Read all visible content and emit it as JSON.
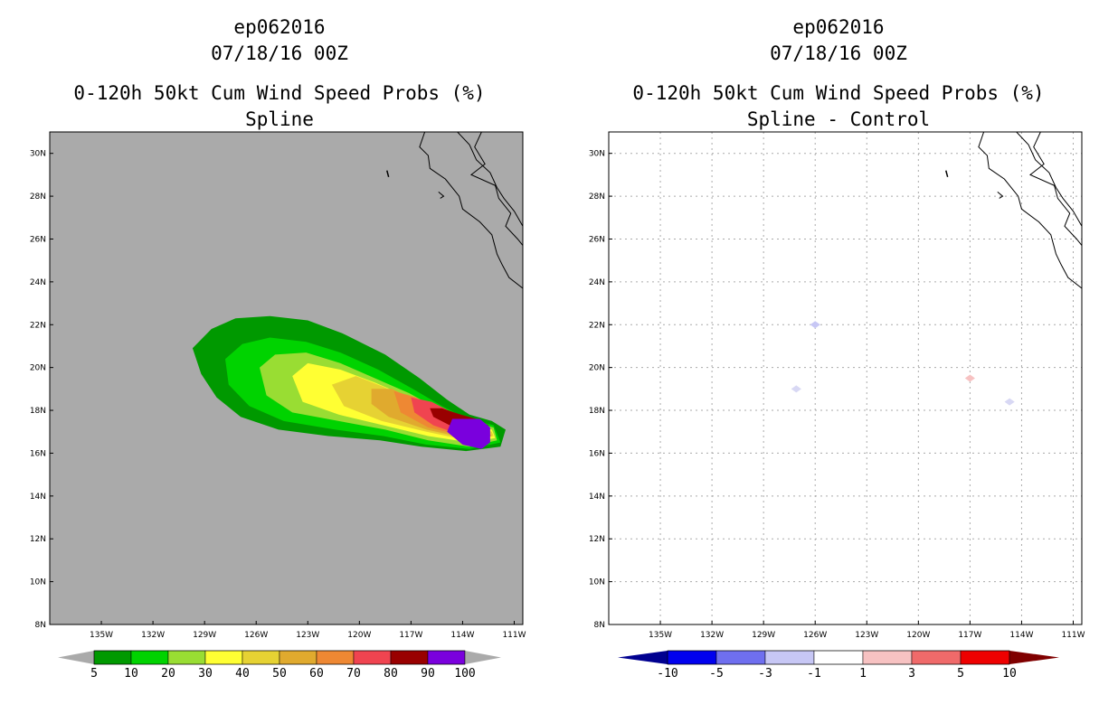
{
  "panels": [
    {
      "storm_id": "ep062016",
      "date": "07/18/16 00Z",
      "product": "0-120h 50kt Cum Wind Speed Probs (%)",
      "subtitle": "Spline"
    },
    {
      "storm_id": "ep062016",
      "date": "07/18/16 00Z",
      "product": "0-120h 50kt Cum Wind Speed Probs (%)",
      "subtitle": "Spline - Control"
    }
  ],
  "chart_data": [
    {
      "type": "heatmap",
      "title": "0-120h 50kt Cum Wind Speed Probs (%) Spline",
      "units": "%",
      "xlim_lon": [
        -138,
        -110.5
      ],
      "ylim_lat": [
        8,
        31
      ],
      "x_ticks": [
        "135W",
        "132W",
        "129W",
        "126W",
        "123W",
        "120W",
        "117W",
        "114W",
        "111W"
      ],
      "x_tick_values": [
        -135,
        -132,
        -129,
        -126,
        -123,
        -120,
        -117,
        -114,
        -111
      ],
      "y_ticks": [
        "8N",
        "10N",
        "12N",
        "14N",
        "16N",
        "18N",
        "20N",
        "22N",
        "24N",
        "26N",
        "28N",
        "30N"
      ],
      "y_tick_values": [
        8,
        10,
        12,
        14,
        16,
        18,
        20,
        22,
        24,
        26,
        28,
        30
      ],
      "background_color": "#aaaaaa",
      "grid": false,
      "colorbar": {
        "labels": [
          "5",
          "10",
          "20",
          "30",
          "40",
          "50",
          "60",
          "70",
          "80",
          "90",
          "100"
        ],
        "colors": [
          "#009900",
          "#00d300",
          "#99dd33",
          "#ffff33",
          "#e6d233",
          "#e0aa2e",
          "#ee8833",
          "#f04450",
          "#990000",
          "#7a00dd"
        ],
        "under_color": "#aaaaaa",
        "over_color": "#aaaaaa"
      },
      "contours": [
        {
          "level": 5,
          "ring": [
            [
              -129.7,
              20.9
            ],
            [
              -128.6,
              21.8
            ],
            [
              -127.2,
              22.3
            ],
            [
              -125.2,
              22.4
            ],
            [
              -123,
              22.2
            ],
            [
              -121,
              21.6
            ],
            [
              -118.5,
              20.6
            ],
            [
              -116.5,
              19.5
            ],
            [
              -114.9,
              18.5
            ],
            [
              -113.6,
              17.8
            ],
            [
              -112.3,
              17.5
            ],
            [
              -111.5,
              17.1
            ],
            [
              -111.8,
              16.3
            ],
            [
              -113.8,
              16.1
            ],
            [
              -116.4,
              16.3
            ],
            [
              -118.8,
              16.6
            ],
            [
              -121.8,
              16.8
            ],
            [
              -124.7,
              17.1
            ],
            [
              -126.9,
              17.7
            ],
            [
              -128.3,
              18.6
            ],
            [
              -129.2,
              19.7
            ]
          ]
        },
        {
          "level": 10,
          "ring": [
            [
              -127.8,
              20.4
            ],
            [
              -126.8,
              21.1
            ],
            [
              -125.2,
              21.4
            ],
            [
              -123.1,
              21.2
            ],
            [
              -121.1,
              20.7
            ],
            [
              -118.9,
              19.9
            ],
            [
              -116.9,
              19.0
            ],
            [
              -115.2,
              18.2
            ],
            [
              -113.7,
              17.6
            ],
            [
              -112.2,
              17.3
            ],
            [
              -111.8,
              16.5
            ],
            [
              -113.6,
              16.2
            ],
            [
              -116.1,
              16.4
            ],
            [
              -118.6,
              16.8
            ],
            [
              -121.4,
              17.1
            ],
            [
              -124.4,
              17.5
            ],
            [
              -126.4,
              18.2
            ],
            [
              -127.6,
              19.2
            ]
          ]
        },
        {
          "level": 20,
          "ring": [
            [
              -125.8,
              20.0
            ],
            [
              -124.9,
              20.6
            ],
            [
              -123.1,
              20.7
            ],
            [
              -121.1,
              20.2
            ],
            [
              -119.1,
              19.5
            ],
            [
              -117.1,
              18.8
            ],
            [
              -115.3,
              18.0
            ],
            [
              -113.7,
              17.5
            ],
            [
              -112.2,
              17.2
            ],
            [
              -112.0,
              16.6
            ],
            [
              -113.6,
              16.3
            ],
            [
              -116.0,
              16.6
            ],
            [
              -118.5,
              17.1
            ],
            [
              -121.2,
              17.5
            ],
            [
              -123.9,
              17.9
            ],
            [
              -125.4,
              18.7
            ]
          ]
        },
        {
          "level": 30,
          "ring": [
            [
              -123.9,
              19.6
            ],
            [
              -123.0,
              20.2
            ],
            [
              -121.1,
              19.9
            ],
            [
              -119.1,
              19.3
            ],
            [
              -117.1,
              18.6
            ],
            [
              -115.3,
              17.9
            ],
            [
              -113.7,
              17.4
            ],
            [
              -112.3,
              17.1
            ],
            [
              -112.1,
              16.7
            ],
            [
              -113.6,
              16.5
            ],
            [
              -116.0,
              16.8
            ],
            [
              -118.6,
              17.3
            ],
            [
              -121.2,
              17.8
            ],
            [
              -123.3,
              18.4
            ]
          ]
        },
        {
          "level": 40,
          "ring": [
            [
              -121.6,
              19.2
            ],
            [
              -120.2,
              19.6
            ],
            [
              -118.6,
              19.1
            ],
            [
              -117.0,
              18.5
            ],
            [
              -115.3,
              17.8
            ],
            [
              -113.7,
              17.3
            ],
            [
              -112.3,
              17.0
            ],
            [
              -112.2,
              16.8
            ],
            [
              -113.7,
              16.6
            ],
            [
              -116.1,
              17.0
            ],
            [
              -118.7,
              17.5
            ],
            [
              -120.9,
              18.2
            ]
          ]
        },
        {
          "level": 50,
          "ring": [
            [
              -119.3,
              19.0
            ],
            [
              -118.1,
              19.0
            ],
            [
              -116.8,
              18.5
            ],
            [
              -115.2,
              17.7
            ],
            [
              -113.7,
              17.2
            ],
            [
              -112.4,
              16.9
            ],
            [
              -112.3,
              16.8
            ],
            [
              -113.8,
              16.7
            ],
            [
              -116.1,
              17.1
            ],
            [
              -118.3,
              17.7
            ],
            [
              -119.3,
              18.3
            ]
          ]
        },
        {
          "level": 60,
          "ring": [
            [
              -118.0,
              18.9
            ],
            [
              -116.7,
              18.6
            ],
            [
              -115.2,
              17.8
            ],
            [
              -113.7,
              17.2
            ],
            [
              -112.4,
              16.9
            ],
            [
              -113.9,
              16.8
            ],
            [
              -116.0,
              17.2
            ],
            [
              -117.6,
              17.9
            ]
          ]
        },
        {
          "level": 70,
          "ring": [
            [
              -117.0,
              18.6
            ],
            [
              -115.8,
              18.4
            ],
            [
              -114.6,
              17.9
            ],
            [
              -113.5,
              17.3
            ],
            [
              -112.4,
              16.9
            ],
            [
              -113.9,
              16.8
            ],
            [
              -115.7,
              17.3
            ],
            [
              -116.8,
              17.9
            ]
          ]
        },
        {
          "level": 80,
          "ring": [
            [
              -115.9,
              18.1
            ],
            [
              -115.2,
              18.1
            ],
            [
              -114.1,
              17.8
            ],
            [
              -113.2,
              17.6
            ],
            [
              -112.5,
              17.3
            ],
            [
              -113.1,
              16.9
            ],
            [
              -114.5,
              17.2
            ],
            [
              -115.7,
              17.7
            ]
          ]
        },
        {
          "level": 90,
          "ring": [
            [
              -114.6,
              17.6
            ],
            [
              -113.0,
              17.6
            ],
            [
              -112.4,
              17.2
            ],
            [
              -112.4,
              16.5
            ],
            [
              -112.9,
              16.2
            ],
            [
              -114.0,
              16.4
            ],
            [
              -114.9,
              17.0
            ]
          ]
        }
      ]
    },
    {
      "type": "heatmap",
      "title": "0-120h 50kt Cum Wind Speed Probs (%) Spline - Control",
      "units": "%",
      "xlim_lon": [
        -138,
        -110.5
      ],
      "ylim_lat": [
        8,
        31
      ],
      "x_ticks": [
        "135W",
        "132W",
        "129W",
        "126W",
        "123W",
        "120W",
        "117W",
        "114W",
        "111W"
      ],
      "x_tick_values": [
        -135,
        -132,
        -129,
        -126,
        -123,
        -120,
        -117,
        -114,
        -111
      ],
      "y_ticks": [
        "8N",
        "10N",
        "12N",
        "14N",
        "16N",
        "18N",
        "20N",
        "22N",
        "24N",
        "26N",
        "28N",
        "30N"
      ],
      "y_tick_values": [
        8,
        10,
        12,
        14,
        16,
        18,
        20,
        22,
        24,
        26,
        28,
        30
      ],
      "background_color": "#ffffff",
      "grid": true,
      "colorbar": {
        "labels": [
          "-10",
          "-5",
          "-3",
          "-1",
          "1",
          "3",
          "5",
          "10"
        ],
        "colors": [
          "#0000ee",
          "#6f6fef",
          "#c7c7f5",
          "#ffffff",
          "#f7c2c2",
          "#f06a6a",
          "#ee0000"
        ],
        "under_color": "#000090",
        "over_color": "#800000"
      },
      "spots": [
        {
          "lon": -126.0,
          "lat": 22.0,
          "value": -2,
          "color": "#c7c7f5"
        },
        {
          "lon": -117.0,
          "lat": 19.5,
          "value": 2,
          "color": "#f7c2c2"
        },
        {
          "lon": -127.1,
          "lat": 19.0,
          "value": -1.5,
          "color": "#d8d8f4"
        },
        {
          "lon": -114.7,
          "lat": 18.4,
          "value": -1.5,
          "color": "#d8d8f4"
        }
      ]
    }
  ]
}
